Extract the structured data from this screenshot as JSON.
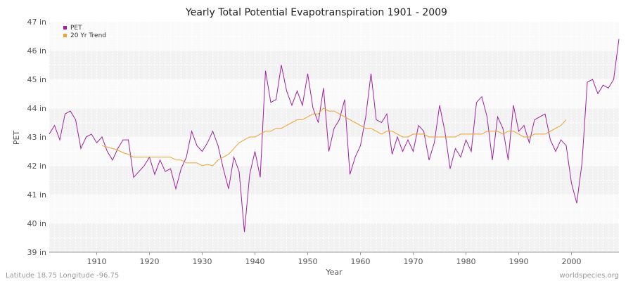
{
  "chart_data": {
    "type": "line",
    "title": "Yearly Total Potential Evapotranspiration 1901 - 2009",
    "xlabel": "Year",
    "ylabel": "PET",
    "xlim": [
      1901,
      2009
    ],
    "ylim": [
      39,
      47
    ],
    "x_ticks": [
      1910,
      1920,
      1930,
      1940,
      1950,
      1960,
      1970,
      1980,
      1990,
      2000
    ],
    "y_ticks": [
      39,
      40,
      41,
      42,
      43,
      44,
      45,
      46,
      47
    ],
    "y_tick_labels": [
      "39 in",
      "40 in",
      "41 in",
      "42 in",
      "43 in",
      "44 in",
      "45 in",
      "46 in",
      "47 in"
    ],
    "grid": true,
    "legend_position": "top-left",
    "series": [
      {
        "name": "PET",
        "color": "#a020a0",
        "points": [
          [
            1901,
            43.1
          ],
          [
            1902,
            43.4
          ],
          [
            1903,
            42.9
          ],
          [
            1904,
            43.8
          ],
          [
            1905,
            43.9
          ],
          [
            1906,
            43.6
          ],
          [
            1907,
            42.6
          ],
          [
            1908,
            43.0
          ],
          [
            1909,
            43.1
          ],
          [
            1910,
            42.8
          ],
          [
            1911,
            43.0
          ],
          [
            1912,
            42.5
          ],
          [
            1913,
            42.2
          ],
          [
            1914,
            42.6
          ],
          [
            1915,
            42.9
          ],
          [
            1916,
            42.9
          ],
          [
            1917,
            41.6
          ],
          [
            1918,
            41.8
          ],
          [
            1919,
            42.0
          ],
          [
            1920,
            42.3
          ],
          [
            1921,
            41.7
          ],
          [
            1922,
            42.2
          ],
          [
            1923,
            41.8
          ],
          [
            1924,
            41.9
          ],
          [
            1925,
            41.2
          ],
          [
            1926,
            41.9
          ],
          [
            1927,
            42.3
          ],
          [
            1928,
            43.2
          ],
          [
            1929,
            42.7
          ],
          [
            1930,
            42.5
          ],
          [
            1931,
            42.8
          ],
          [
            1932,
            43.2
          ],
          [
            1933,
            42.7
          ],
          [
            1934,
            41.9
          ],
          [
            1935,
            41.2
          ],
          [
            1936,
            42.3
          ],
          [
            1937,
            41.8
          ],
          [
            1938,
            39.7
          ],
          [
            1939,
            41.7
          ],
          [
            1940,
            42.5
          ],
          [
            1941,
            41.6
          ],
          [
            1942,
            45.3
          ],
          [
            1943,
            44.2
          ],
          [
            1944,
            44.3
          ],
          [
            1945,
            45.5
          ],
          [
            1946,
            44.6
          ],
          [
            1947,
            44.1
          ],
          [
            1948,
            44.6
          ],
          [
            1949,
            44.1
          ],
          [
            1950,
            45.2
          ],
          [
            1951,
            44.0
          ],
          [
            1952,
            43.5
          ],
          [
            1953,
            44.7
          ],
          [
            1954,
            42.5
          ],
          [
            1955,
            43.3
          ],
          [
            1956,
            43.6
          ],
          [
            1957,
            44.3
          ],
          [
            1958,
            41.7
          ],
          [
            1959,
            42.3
          ],
          [
            1960,
            42.7
          ],
          [
            1961,
            43.7
          ],
          [
            1962,
            45.2
          ],
          [
            1963,
            43.6
          ],
          [
            1964,
            43.5
          ],
          [
            1965,
            43.8
          ],
          [
            1966,
            42.4
          ],
          [
            1967,
            43.0
          ],
          [
            1968,
            42.5
          ],
          [
            1969,
            42.9
          ],
          [
            1970,
            42.5
          ],
          [
            1971,
            43.4
          ],
          [
            1972,
            43.2
          ],
          [
            1973,
            42.2
          ],
          [
            1974,
            42.8
          ],
          [
            1975,
            44.1
          ],
          [
            1976,
            43.2
          ],
          [
            1977,
            41.9
          ],
          [
            1978,
            42.6
          ],
          [
            1979,
            42.3
          ],
          [
            1980,
            42.9
          ],
          [
            1981,
            42.5
          ],
          [
            1982,
            44.2
          ],
          [
            1983,
            44.4
          ],
          [
            1984,
            43.7
          ],
          [
            1985,
            42.2
          ],
          [
            1986,
            43.7
          ],
          [
            1987,
            43.3
          ],
          [
            1988,
            42.2
          ],
          [
            1989,
            44.1
          ],
          [
            1990,
            43.2
          ],
          [
            1991,
            43.4
          ],
          [
            1992,
            42.8
          ],
          [
            1993,
            43.6
          ],
          [
            1994,
            43.7
          ],
          [
            1995,
            43.8
          ],
          [
            1996,
            42.9
          ],
          [
            1997,
            42.5
          ],
          [
            1998,
            42.9
          ],
          [
            1999,
            42.7
          ],
          [
            2000,
            41.4
          ],
          [
            2001,
            40.7
          ],
          [
            2002,
            42.1
          ],
          [
            2003,
            44.9
          ],
          [
            2004,
            45.0
          ],
          [
            2005,
            44.5
          ],
          [
            2006,
            44.8
          ],
          [
            2007,
            44.7
          ],
          [
            2008,
            45.0
          ],
          [
            2009,
            46.4
          ]
        ]
      },
      {
        "name": "20 Yr Trend",
        "color": "#f0a030",
        "points": [
          [
            1911,
            42.7
          ],
          [
            1912,
            42.65
          ],
          [
            1913,
            42.6
          ],
          [
            1914,
            42.55
          ],
          [
            1915,
            42.45
          ],
          [
            1916,
            42.4
          ],
          [
            1917,
            42.3
          ],
          [
            1918,
            42.3
          ],
          [
            1919,
            42.3
          ],
          [
            1920,
            42.3
          ],
          [
            1921,
            42.3
          ],
          [
            1922,
            42.3
          ],
          [
            1923,
            42.3
          ],
          [
            1924,
            42.3
          ],
          [
            1925,
            42.2
          ],
          [
            1926,
            42.2
          ],
          [
            1927,
            42.1
          ],
          [
            1928,
            42.1
          ],
          [
            1929,
            42.1
          ],
          [
            1930,
            42.0
          ],
          [
            1931,
            42.05
          ],
          [
            1932,
            42.0
          ],
          [
            1933,
            42.2
          ],
          [
            1934,
            42.3
          ],
          [
            1935,
            42.4
          ],
          [
            1936,
            42.6
          ],
          [
            1937,
            42.8
          ],
          [
            1938,
            42.9
          ],
          [
            1939,
            43.0
          ],
          [
            1940,
            43.0
          ],
          [
            1941,
            43.1
          ],
          [
            1942,
            43.2
          ],
          [
            1943,
            43.2
          ],
          [
            1944,
            43.3
          ],
          [
            1945,
            43.3
          ],
          [
            1946,
            43.4
          ],
          [
            1947,
            43.5
          ],
          [
            1948,
            43.6
          ],
          [
            1949,
            43.6
          ],
          [
            1950,
            43.7
          ],
          [
            1951,
            43.8
          ],
          [
            1952,
            43.8
          ],
          [
            1953,
            44.0
          ],
          [
            1954,
            43.9
          ],
          [
            1955,
            43.9
          ],
          [
            1956,
            43.8
          ],
          [
            1957,
            43.7
          ],
          [
            1958,
            43.6
          ],
          [
            1959,
            43.5
          ],
          [
            1960,
            43.4
          ],
          [
            1961,
            43.3
          ],
          [
            1962,
            43.3
          ],
          [
            1963,
            43.2
          ],
          [
            1964,
            43.1
          ],
          [
            1965,
            43.2
          ],
          [
            1966,
            43.2
          ],
          [
            1967,
            43.1
          ],
          [
            1968,
            43.0
          ],
          [
            1969,
            43.0
          ],
          [
            1970,
            43.1
          ],
          [
            1971,
            43.1
          ],
          [
            1972,
            43.1
          ],
          [
            1973,
            43.0
          ],
          [
            1974,
            43.0
          ],
          [
            1975,
            43.0
          ],
          [
            1976,
            43.0
          ],
          [
            1977,
            43.0
          ],
          [
            1978,
            43.0
          ],
          [
            1979,
            43.1
          ],
          [
            1980,
            43.1
          ],
          [
            1981,
            43.1
          ],
          [
            1982,
            43.1
          ],
          [
            1983,
            43.1
          ],
          [
            1984,
            43.2
          ],
          [
            1985,
            43.2
          ],
          [
            1986,
            43.2
          ],
          [
            1987,
            43.1
          ],
          [
            1988,
            43.2
          ],
          [
            1989,
            43.2
          ],
          [
            1990,
            43.1
          ],
          [
            1991,
            43.0
          ],
          [
            1992,
            43.0
          ],
          [
            1993,
            43.1
          ],
          [
            1994,
            43.1
          ],
          [
            1995,
            43.1
          ],
          [
            1996,
            43.2
          ],
          [
            1997,
            43.3
          ],
          [
            1998,
            43.4
          ],
          [
            1999,
            43.6
          ]
        ]
      }
    ]
  },
  "footer": {
    "location": "Latitude 18.75 Longitude -96.75",
    "source": "worldspecies.org"
  }
}
